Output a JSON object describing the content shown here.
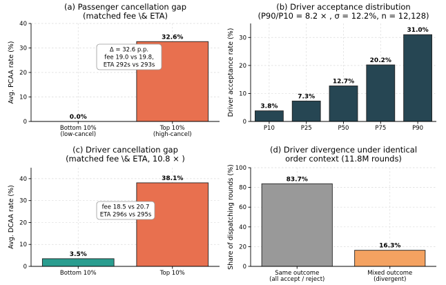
{
  "chart_data": [
    {
      "id": "a",
      "type": "bar",
      "title": [
        "(a) Passenger cancellation gap",
        "(matched fee \\& ETA)"
      ],
      "ylabel": "Avg. PCAA rate (%)",
      "xlabel": "",
      "categories": [
        [
          "Bottom 10%",
          "(low-cancel)"
        ],
        [
          "Top 10%",
          "(high-cancel)"
        ]
      ],
      "values": [
        0.0,
        32.6
      ],
      "data_labels": [
        "0.0%",
        "32.6%"
      ],
      "colors": [
        "#e8704f",
        "#e8704f"
      ],
      "ylim": [
        0,
        40
      ],
      "yticks": [
        0,
        10,
        20,
        30,
        40
      ],
      "grid": true,
      "annotation": [
        "Δ = 32.6 p.p.",
        "fee 19.0 vs 19.8,",
        "ETA 292s vs 293s"
      ]
    },
    {
      "id": "b",
      "type": "bar",
      "title": [
        "(b) Driver acceptance distribution",
        "(P90/P10 = 8.2 × , σ = 12.2%, n = 12,128)"
      ],
      "ylabel": "Driver acceptance rate (%)",
      "xlabel": "",
      "categories": [
        [
          "P10"
        ],
        [
          "P25"
        ],
        [
          "P50"
        ],
        [
          "P75"
        ],
        [
          "P90"
        ]
      ],
      "values": [
        3.8,
        7.3,
        12.7,
        20.2,
        31.0
      ],
      "data_labels": [
        "3.8%",
        "7.3%",
        "12.7%",
        "20.2%",
        "31.0%"
      ],
      "colors": [
        "#264653",
        "#264653",
        "#264653",
        "#264653",
        "#264653"
      ],
      "ylim": [
        0,
        35
      ],
      "yticks": [
        0,
        10,
        20,
        30
      ],
      "grid": true,
      "annotation": []
    },
    {
      "id": "c",
      "type": "bar",
      "title": [
        "(c) Driver cancellation gap",
        "(matched fee \\& ETA, 10.8 × )"
      ],
      "ylabel": "Avg. DCAA rate (%)",
      "xlabel": "",
      "categories": [
        [
          "Bottom 10%"
        ],
        [
          "Top 10%"
        ]
      ],
      "values": [
        3.5,
        38.1
      ],
      "data_labels": [
        "3.5%",
        "38.1%"
      ],
      "colors": [
        "#2a9d8f",
        "#e8704f"
      ],
      "ylim": [
        0,
        45
      ],
      "yticks": [
        0,
        10,
        20,
        30,
        40
      ],
      "grid": true,
      "annotation": [
        "fee 18.5 vs 20.7",
        "ETA 296s vs 295s"
      ]
    },
    {
      "id": "d",
      "type": "bar",
      "title": [
        "(d) Driver divergence under identical",
        "order context (11.8M rounds)"
      ],
      "ylabel": "Share of dispatching rounds (%)",
      "xlabel": "",
      "categories": [
        [
          "Same outcome",
          "(all accept / reject)"
        ],
        [
          "Mixed outcome",
          "(divergent)"
        ]
      ],
      "values": [
        83.7,
        16.3
      ],
      "data_labels": [
        "83.7%",
        "16.3%"
      ],
      "colors": [
        "#999999",
        "#f4a261"
      ],
      "ylim": [
        0,
        100
      ],
      "yticks": [
        0,
        20,
        40,
        60,
        80,
        100
      ],
      "grid": true,
      "annotation": []
    }
  ]
}
